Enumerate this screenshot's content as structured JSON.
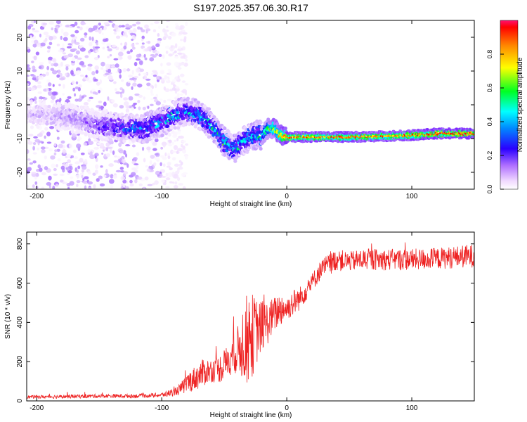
{
  "title": "S197.2025.357.06.30.R17",
  "colors": {
    "snr_line": "#ee2222",
    "axis": "#000000",
    "background": "#ffffff",
    "colormap": [
      "#ffffff",
      "#f2e0ff",
      "#ba90ff",
      "#7a22ff",
      "#2a00ff",
      "#0090ff",
      "#00ffff",
      "#00ff22",
      "#ffff00",
      "#ff8800",
      "#ff0000"
    ]
  },
  "chart_data": [
    {
      "type": "heatmap",
      "title": "S197.2025.357.06.30.R17",
      "xlabel": "Height of straight line (km)",
      "ylabel": "Frequency (Hz)",
      "xlim": [
        -208,
        150
      ],
      "ylim": [
        -25,
        25
      ],
      "xticks": [
        -200,
        -100,
        0,
        100
      ],
      "xtick_labels": [
        "-200",
        "-100",
        "0",
        "100"
      ],
      "yticks": [
        20,
        10,
        0,
        -10,
        -20
      ],
      "ytick_labels": [
        "20",
        "10",
        "0",
        "-10",
        "-20"
      ],
      "colorbar": {
        "label": "Normalized spectral amplitude",
        "range": [
          0,
          1
        ],
        "ticks": [
          0,
          0.2,
          0.4,
          0.6,
          0.8
        ],
        "tick_labels": [
          "0.0",
          "0.2",
          "0.4",
          "0.6",
          "0.8"
        ]
      },
      "ridge": {
        "x": [
          -208,
          -190,
          -170,
          -150,
          -130,
          -115,
          -100,
          -90,
          -80,
          -70,
          -60,
          -50,
          -42,
          -35,
          -28,
          -20,
          -15,
          -10,
          -5,
          0,
          20,
          50,
          80,
          100,
          120,
          150
        ],
        "y": [
          -3,
          -3,
          -4,
          -6,
          -7,
          -7,
          -5,
          -3,
          -2,
          -3,
          -6,
          -11,
          -13,
          -11,
          -9,
          -9,
          -7,
          -7,
          -9,
          -9.5,
          -9.5,
          -9.5,
          -9.3,
          -9,
          -8.5,
          -8.5
        ],
        "amplitude": [
          0.15,
          0.15,
          0.2,
          0.3,
          0.4,
          0.45,
          0.45,
          0.5,
          0.45,
          0.5,
          0.5,
          0.55,
          0.5,
          0.5,
          0.55,
          0.6,
          0.65,
          0.8,
          0.85,
          0.95,
          0.9,
          0.92,
          0.9,
          0.93,
          0.97,
          0.97
        ]
      },
      "noise_region_x": [
        -208,
        -100
      ],
      "noise_amplitude": 0.12
    },
    {
      "type": "line",
      "title": "",
      "xlabel": "Height of straight line (km)",
      "ylabel": "SNR (10 * v/v)",
      "xlim": [
        -208,
        150
      ],
      "ylim": [
        0,
        860
      ],
      "xticks": [
        -200,
        -100,
        0,
        100
      ],
      "xtick_labels": [
        "-200",
        "-100",
        "0",
        "100"
      ],
      "yticks": [
        0,
        200,
        400,
        600,
        800
      ],
      "ytick_labels": [
        "0",
        "200",
        "400",
        "600",
        "800"
      ],
      "series": [
        {
          "name": "SNR",
          "x": [
            -208,
            -180,
            -150,
            -120,
            -100,
            -90,
            -85,
            -80,
            -75,
            -70,
            -65,
            -60,
            -55,
            -50,
            -45,
            -40,
            -35,
            -30,
            -25,
            -20,
            -15,
            -10,
            -5,
            0,
            5,
            10,
            15,
            20,
            25,
            30,
            40,
            50,
            60,
            80,
            100,
            120,
            150
          ],
          "values": [
            20,
            22,
            25,
            25,
            30,
            45,
            60,
            90,
            110,
            130,
            150,
            155,
            160,
            180,
            220,
            250,
            300,
            320,
            350,
            380,
            400,
            440,
            470,
            470,
            500,
            520,
            560,
            600,
            650,
            680,
            720,
            710,
            720,
            720,
            720,
            725,
            740
          ],
          "noise": [
            8,
            10,
            10,
            10,
            12,
            20,
            30,
            50,
            60,
            70,
            70,
            60,
            70,
            80,
            90,
            110,
            200,
            250,
            180,
            130,
            110,
            90,
            90,
            60,
            70,
            60,
            55,
            50,
            50,
            55,
            55,
            50,
            55,
            55,
            55,
            55,
            60
          ]
        }
      ]
    }
  ]
}
